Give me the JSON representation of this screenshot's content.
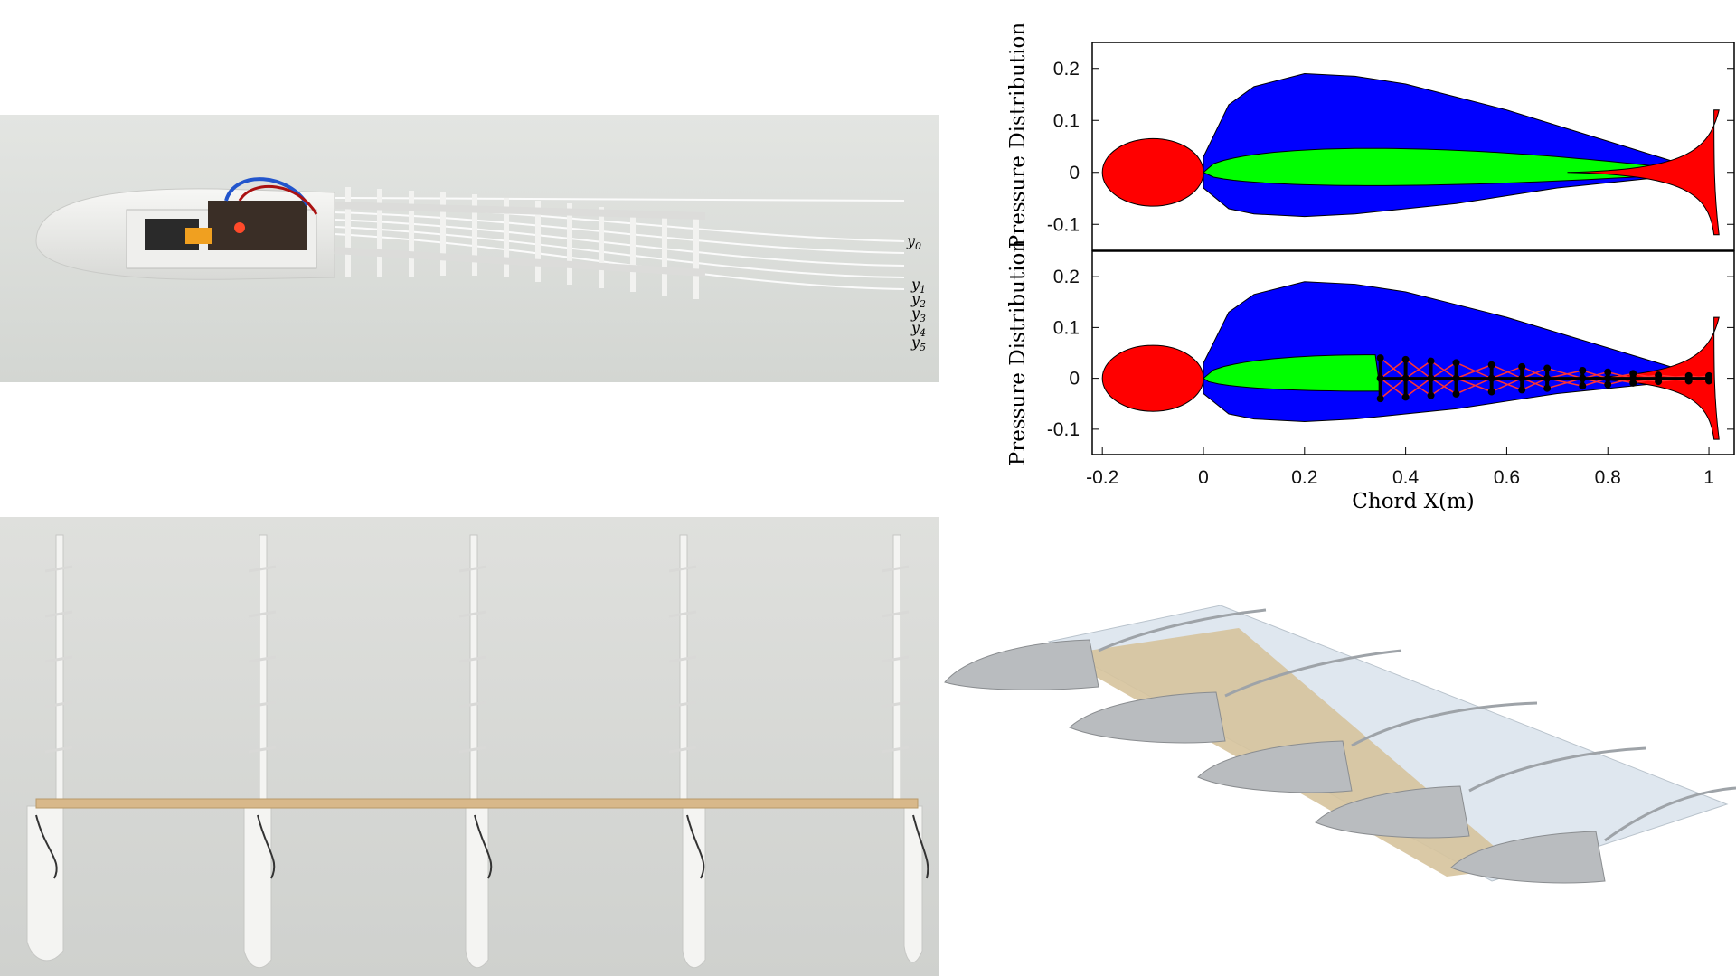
{
  "morph_photo": {
    "labels": [
      "y",
      "y",
      "y",
      "y",
      "y",
      "y"
    ],
    "subscripts": [
      "0",
      "1",
      "2",
      "3",
      "4",
      "5"
    ]
  },
  "chart_data": [
    {
      "type": "area",
      "ylabel": "Pressure Distribution",
      "xlim": [
        -0.22,
        1.05
      ],
      "ylim": [
        -0.15,
        0.25
      ],
      "yticks": [
        -0.1,
        0,
        0.1,
        0.2
      ],
      "ytick_labels": [
        "-0.1",
        "0",
        "0.1",
        "0.2"
      ],
      "series_colors": {
        "suction": "#0000ff",
        "airfoil": "#00ff00",
        "stagnation": "#ff0000"
      },
      "x": [
        0.0,
        0.05,
        0.1,
        0.2,
        0.3,
        0.4,
        0.5,
        0.6,
        0.7,
        0.8,
        0.9,
        1.0
      ],
      "upper_boundary": [
        0.03,
        0.13,
        0.165,
        0.19,
        0.185,
        0.17,
        0.145,
        0.12,
        0.09,
        0.06,
        0.03,
        0.0
      ],
      "lower_boundary": [
        -0.03,
        -0.07,
        -0.08,
        -0.085,
        -0.08,
        -0.07,
        -0.06,
        -0.045,
        -0.03,
        -0.02,
        -0.01,
        0.0
      ]
    },
    {
      "type": "area",
      "ylabel": "Pressure Distribution",
      "xlabel": "Chord X(m)",
      "xlim": [
        -0.22,
        1.05
      ],
      "ylim": [
        -0.15,
        0.25
      ],
      "xticks": [
        -0.2,
        0,
        0.2,
        0.4,
        0.6,
        0.8,
        1
      ],
      "xtick_labels": [
        "-0.2",
        "0",
        "0.2",
        "0.4",
        "0.6",
        "0.8",
        "1"
      ],
      "yticks": [
        -0.1,
        0,
        0.1,
        0.2
      ],
      "ytick_labels": [
        "-0.1",
        "0",
        "0.1",
        "0.2"
      ],
      "series_colors": {
        "suction": "#0000ff",
        "airfoil": "#00ff00",
        "stagnation": "#ff0000",
        "structure": "#000000"
      },
      "x": [
        0.0,
        0.05,
        0.1,
        0.2,
        0.3,
        0.4,
        0.5,
        0.6,
        0.7,
        0.8,
        0.9,
        1.0
      ],
      "upper_boundary": [
        0.03,
        0.13,
        0.165,
        0.19,
        0.185,
        0.17,
        0.145,
        0.12,
        0.09,
        0.06,
        0.03,
        0.0
      ],
      "lower_boundary": [
        -0.03,
        -0.07,
        -0.08,
        -0.085,
        -0.08,
        -0.07,
        -0.06,
        -0.045,
        -0.03,
        -0.02,
        -0.01,
        0.0
      ],
      "rib_positions": [
        0.35,
        0.4,
        0.45,
        0.5,
        0.57,
        0.63,
        0.68,
        0.75,
        0.8,
        0.85,
        0.9,
        0.96,
        1.0
      ]
    }
  ]
}
